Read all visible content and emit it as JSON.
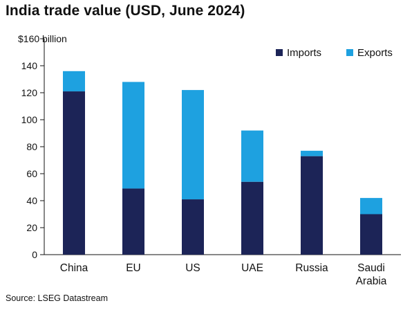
{
  "chart_data": {
    "type": "bar",
    "stacked": true,
    "title": "India trade value (USD, June 2024)",
    "source": "Source: LSEG Datastream",
    "categories": [
      "China",
      "EU",
      "US",
      "UAE",
      "Russia",
      "Saudi Arabia"
    ],
    "category_lines": [
      [
        "China"
      ],
      [
        "EU"
      ],
      [
        "US"
      ],
      [
        "UAE"
      ],
      [
        "Russia"
      ],
      [
        "Saudi",
        "Arabia"
      ]
    ],
    "series": [
      {
        "name": "Imports",
        "color": "#1c2457",
        "values": [
          121,
          49,
          41,
          54,
          73,
          30
        ]
      },
      {
        "name": "Exports",
        "color": "#1ea1e0",
        "values": [
          15,
          79,
          81,
          38,
          4,
          12
        ]
      }
    ],
    "ylim": [
      0,
      160
    ],
    "yticks": [
      0,
      20,
      40,
      60,
      80,
      100,
      120,
      140
    ],
    "top_tick_label": "$160 billion",
    "legend_position": "top-right",
    "grid": false
  }
}
